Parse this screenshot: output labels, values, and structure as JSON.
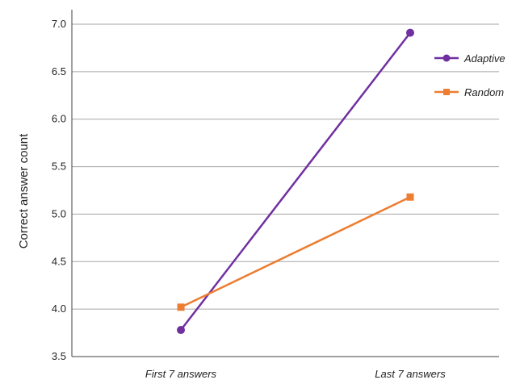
{
  "chart_data": {
    "type": "line",
    "title": "",
    "xlabel": "",
    "ylabel": "Correct answer count",
    "categories": [
      "First 7 answers",
      "Last 7 answers"
    ],
    "ylim": [
      3.5,
      7.0
    ],
    "yticks": [
      "3.5",
      "4.0",
      "4.5",
      "5.0",
      "5.5",
      "6.0",
      "6.5",
      "7.0"
    ],
    "grid": true,
    "legend_position": "top-right",
    "series": [
      {
        "name": "Adaptive",
        "values": [
          3.78,
          6.91
        ],
        "color": "#7030a0",
        "marker": "circle"
      },
      {
        "name": "Random",
        "values": [
          4.02,
          5.18
        ],
        "color": "#ed7d31",
        "marker": "square"
      }
    ]
  }
}
